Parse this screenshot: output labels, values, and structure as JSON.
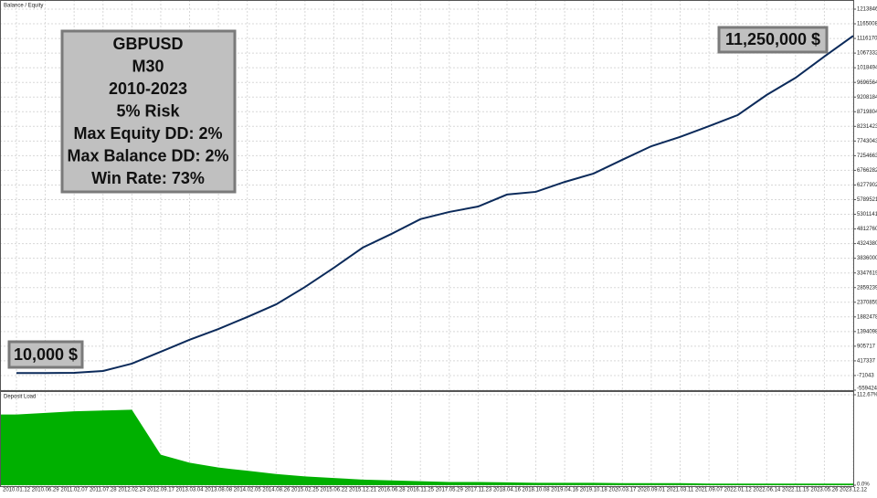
{
  "chart_data": [
    {
      "type": "line",
      "title": "Balance / Equity",
      "categories": [
        "2010.01.12",
        "2010.06.29",
        "2011.02.07",
        "2011.07.28",
        "2012.02.24",
        "2012.09.17",
        "2013.03.04",
        "2013.08.08",
        "2014.02.05",
        "2014.08.26",
        "2015.02.25",
        "2015.06.22",
        "2015.12.21",
        "2016.06.28",
        "2016.11.25",
        "2017.05.29",
        "2017.11.23",
        "2018.04.16",
        "2018.10.08",
        "2019.04.16",
        "2019.10.18",
        "2020.03.17",
        "2020.09.01",
        "2021.03.11",
        "2021.09.07",
        "2022.01.12",
        "2022.06.14",
        "2022.11.15",
        "2023.05.26",
        "2023.12.12"
      ],
      "series": [
        {
          "name": "Balance",
          "color": "#0b2a5a",
          "values": [
            10000,
            10000,
            20000,
            80000,
            325000,
            720000,
            1120000,
            1480000,
            1880000,
            2300000,
            2880000,
            3520000,
            4190000,
            4650000,
            5140000,
            5380000,
            5560000,
            5960000,
            6050000,
            6380000,
            6660000,
            7120000,
            7570000,
            7880000,
            8240000,
            8610000,
            9280000,
            9850000,
            10560000,
            11250000
          ]
        }
      ],
      "ylim": [
        -559424,
        12443000
      ],
      "yticks": [
        12138466,
        11650086,
        11161705,
        10673325,
        10184945,
        9696564,
        9208184,
        8719804,
        8231423,
        7743043,
        7254663,
        6766282,
        6277902,
        5789521,
        5301141,
        4812760,
        4324380,
        3836000,
        3347619,
        2859239,
        2370859,
        1882478,
        1394098,
        905717,
        417337,
        -71043,
        -559424
      ],
      "grid": true,
      "annotations": {
        "box": [
          "GBPUSD",
          "M30",
          "2010-2023",
          "5% Risk",
          "Max Equity DD: 2%",
          "Max Balance DD: 2%",
          "Win Rate: 73%"
        ],
        "start_label": "10,000 $",
        "end_label": "11,250,000 $"
      }
    },
    {
      "type": "area",
      "title": "Deposit Load",
      "series": [
        {
          "name": "Deposit Load",
          "color": "#00b000",
          "values": [
            88,
            90,
            92,
            93,
            94,
            38,
            28,
            22,
            18,
            14,
            11,
            9,
            7,
            6,
            5,
            4,
            4,
            3.5,
            3,
            3,
            3,
            2.5,
            2.5,
            2.5,
            2,
            2,
            2,
            2,
            2,
            2
          ]
        }
      ],
      "ylim": [
        0,
        112.67
      ],
      "yticks": [
        {
          "value": 112.67,
          "label": "112.67%"
        },
        {
          "value": 0,
          "label": "0.0%"
        }
      ],
      "grid": true
    }
  ]
}
